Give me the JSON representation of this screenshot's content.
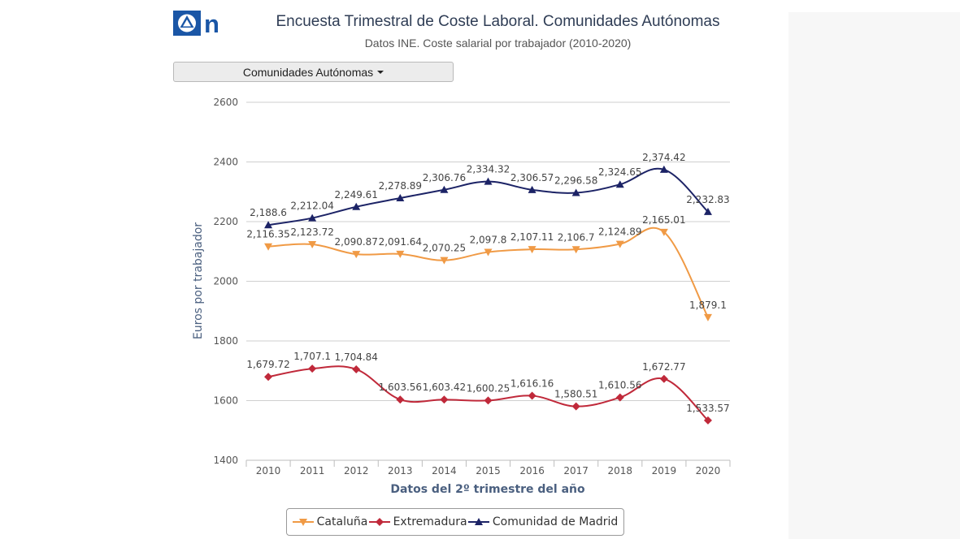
{
  "header": {
    "title": "Encuesta Trimestral de Coste Laboral. Comunidades Autónomas",
    "subtitle": "Datos INE. Coste salarial por trabajador (2010-2020)"
  },
  "logo": {
    "icon": "antena3-noticias-logo",
    "text": "n"
  },
  "dropdown": {
    "label": "Comunidades Autónomas"
  },
  "chart_data": {
    "type": "line",
    "categories": [
      "2010",
      "2011",
      "2012",
      "2013",
      "2014",
      "2015",
      "2016",
      "2017",
      "2018",
      "2019",
      "2020"
    ],
    "ylim": [
      1400,
      2600
    ],
    "yticks": [
      "1400",
      "1600",
      "1800",
      "2000",
      "2200",
      "2400",
      "2600"
    ],
    "xlabel": "Datos del 2º trimestre del año",
    "ylabel": "Euros por trabajador",
    "grid": true,
    "legend_position": "bottom",
    "series": [
      {
        "name": "Cataluña",
        "color": "#f09a45",
        "marker": "triangle-down",
        "values": [
          2116.35,
          2123.72,
          2090.87,
          2091.64,
          2070.25,
          2097.8,
          2107.11,
          2106.7,
          2124.89,
          2165.01,
          1879.1
        ],
        "labels": [
          "2,116.35",
          "2,123.72",
          "2,090.87",
          "2,091.64",
          "2,070.25",
          "2,097.8",
          "2,107.11",
          "2,106.7",
          "2,124.89",
          "2,165.01",
          "1,879.1"
        ]
      },
      {
        "name": "Extremadura",
        "color": "#c0293a",
        "marker": "diamond",
        "values": [
          1679.72,
          1707.1,
          1704.84,
          1603.56,
          1603.42,
          1600.25,
          1616.16,
          1580.51,
          1610.56,
          1672.77,
          1533.57
        ],
        "labels": [
          "1,679.72",
          "1,707.1",
          "1,704.84",
          "1,603.56",
          "1,603.42",
          "1,600.25",
          "1,616.16",
          "1,580.51",
          "1,610.56",
          "1,672.77",
          "1,533.57"
        ]
      },
      {
        "name": "Comunidad de Madrid",
        "color": "#1c2366",
        "marker": "triangle-up",
        "values": [
          2188.6,
          2212.04,
          2249.61,
          2278.89,
          2306.76,
          2334.32,
          2306.57,
          2296.58,
          2324.65,
          2374.42,
          2232.83
        ],
        "labels": [
          "2,188.6",
          "2,212.04",
          "2,249.61",
          "2,278.89",
          "2,306.76",
          "2,334.32",
          "2,306.57",
          "2,296.58",
          "2,324.65",
          "2,374.42",
          "2,232.83"
        ]
      }
    ]
  }
}
